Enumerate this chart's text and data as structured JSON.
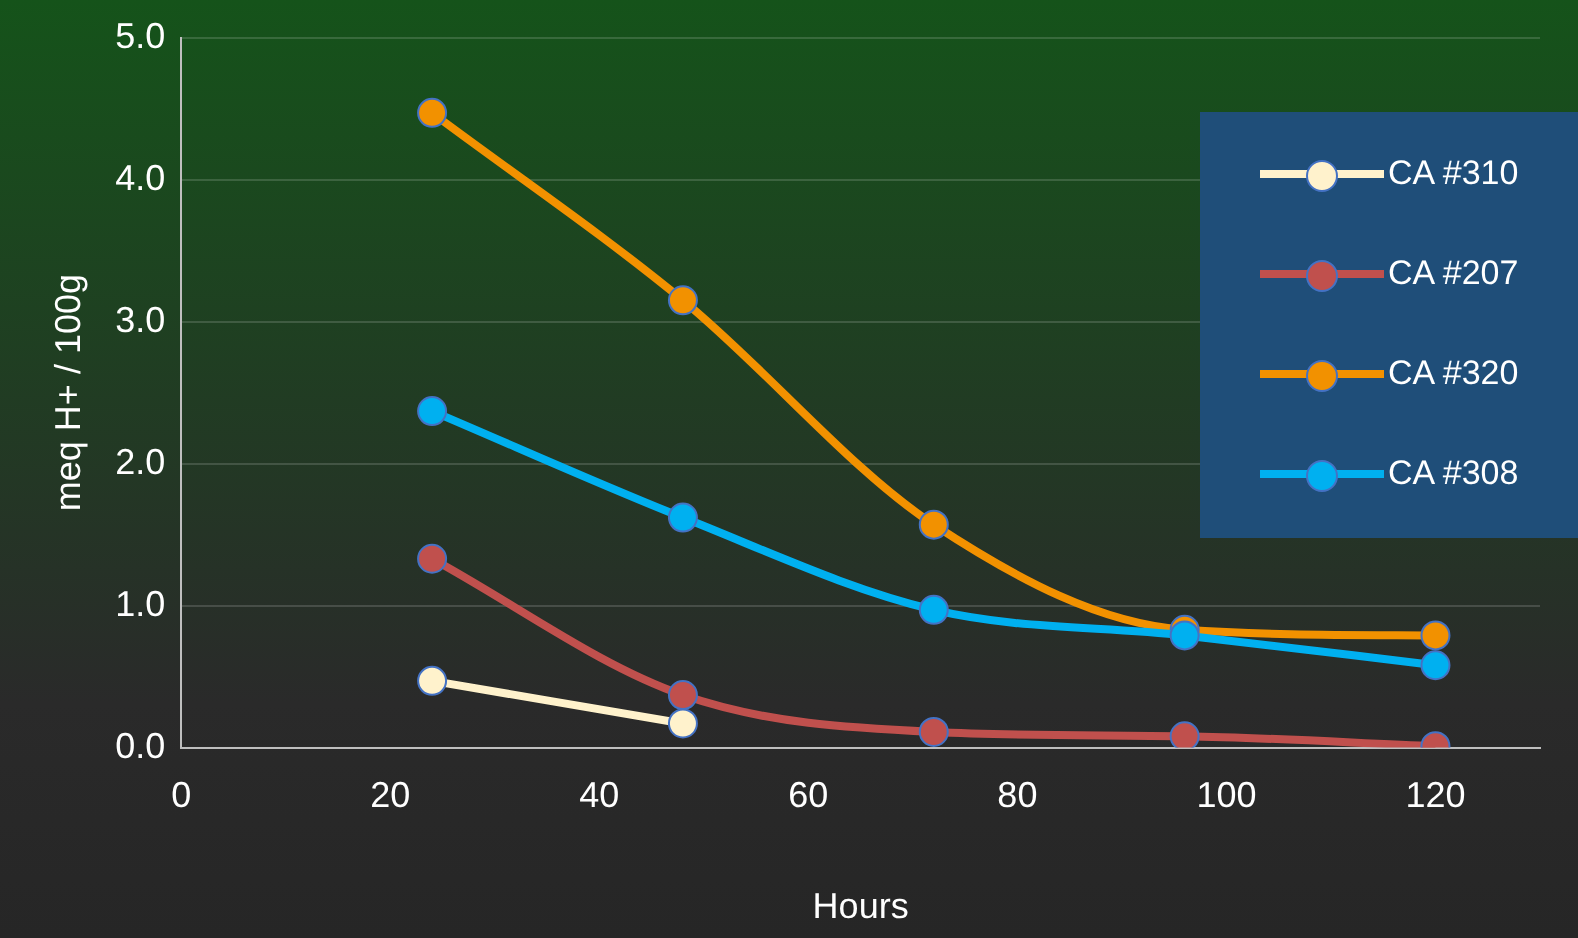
{
  "chart_data": {
    "type": "line",
    "xlabel": "Hours",
    "ylabel": "meq H+ / 100g",
    "x": [
      24,
      48,
      72,
      96,
      120
    ],
    "series": [
      {
        "name": "CA #310",
        "color": "#fff2cc",
        "values": [
          0.47,
          0.17,
          null,
          null,
          null
        ]
      },
      {
        "name": "CA #207",
        "color": "#c0504d",
        "values": [
          1.33,
          0.37,
          0.11,
          0.08,
          0.01
        ]
      },
      {
        "name": "CA #320",
        "color": "#f29100",
        "values": [
          4.47,
          3.15,
          1.57,
          0.83,
          0.79
        ]
      },
      {
        "name": "CA #308",
        "color": "#00b0f0",
        "values": [
          2.37,
          1.62,
          0.97,
          0.79,
          0.58
        ]
      }
    ],
    "xlim": [
      0,
      130
    ],
    "xticks": [
      0,
      20,
      40,
      60,
      80,
      100,
      120
    ],
    "ylim": [
      0,
      5
    ],
    "yticks": [
      {
        "value": 0,
        "label": "0.0"
      },
      {
        "value": 1,
        "label": "1.0"
      },
      {
        "value": 2,
        "label": "2.0"
      },
      {
        "value": 3,
        "label": "3.0"
      },
      {
        "value": 4,
        "label": "4.0"
      },
      {
        "value": 5,
        "label": "5.0"
      }
    ],
    "grid": "y",
    "legend": "top right",
    "marker": "circle",
    "line_style": "solid"
  }
}
